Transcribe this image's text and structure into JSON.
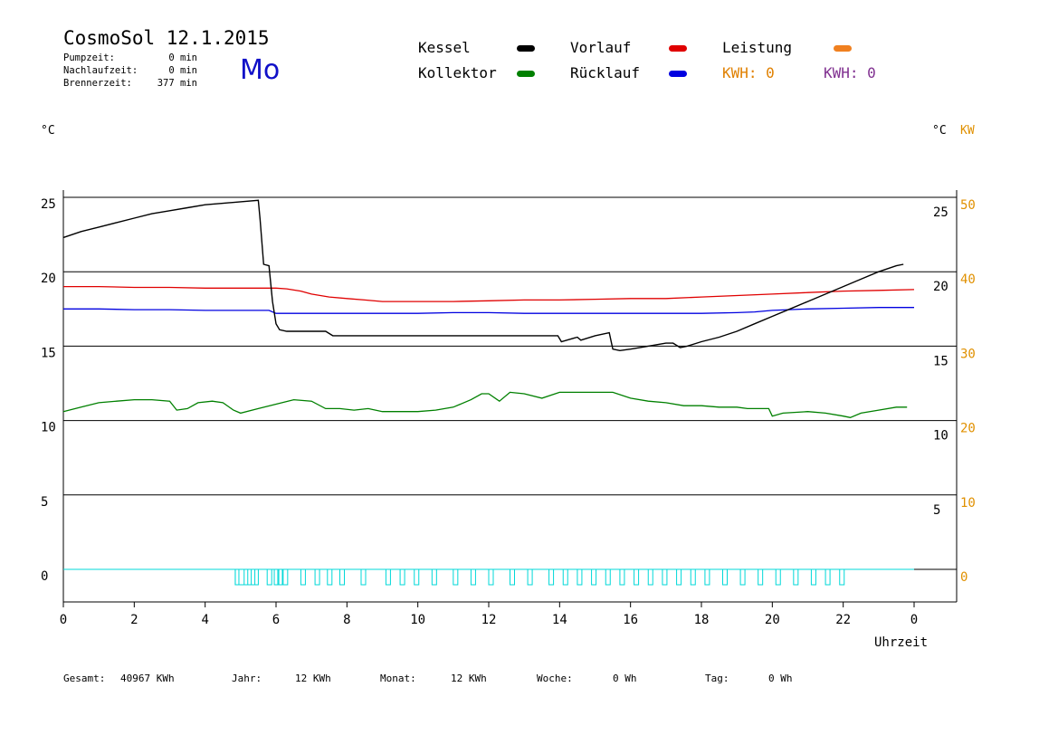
{
  "header": {
    "title": "CosmoSol 12.1.2015",
    "weekday": "Mo",
    "stats": [
      {
        "label": "Pumpzeit:",
        "value": "0 min"
      },
      {
        "label": "Nachlaufzeit:",
        "value": "0 min"
      },
      {
        "label": "Brennerzeit:",
        "value": "377 min"
      }
    ]
  },
  "legend": {
    "kessel": {
      "label": "Kessel",
      "color": "#000000"
    },
    "vorlauf": {
      "label": "Vorlauf",
      "color": "#e00000"
    },
    "leistung": {
      "label": "Leistung",
      "color": "#f08020"
    },
    "kollektor": {
      "label": "Kollektor",
      "color": "#008000"
    },
    "ruecklauf": {
      "label": "Rücklauf",
      "color": "#0000e0"
    },
    "kwh_orange": {
      "label": "KWH: 0",
      "color": "#e08000"
    },
    "kwh_purple": {
      "label": "KWH: 0",
      "color": "#803090"
    }
  },
  "axes": {
    "left_unit": "°C",
    "right_unit": "°C",
    "right_unit2": "KW",
    "x_label": "Uhrzeit"
  },
  "footer": {
    "gesamt_label": "Gesamt:",
    "gesamt_value": "40967 KWh",
    "jahr_label": "Jahr:",
    "jahr_value": "12 KWh",
    "monat_label": "Monat:",
    "monat_value": "12 KWh",
    "woche_label": "Woche:",
    "woche_value": "0 Wh",
    "tag_label": "Tag:",
    "tag_value": "0 Wh"
  },
  "chart_data": {
    "type": "line",
    "xlim": [
      0,
      24
    ],
    "ylim": [
      -2,
      26
    ],
    "y2lim": [
      -4,
      52
    ],
    "x_ticks": [
      "0",
      "2",
      "4",
      "6",
      "8",
      "10",
      "12",
      "14",
      "16",
      "18",
      "20",
      "22",
      "0"
    ],
    "y_ticks_left": [
      0,
      5,
      10,
      15,
      20,
      25
    ],
    "y_ticks_right": [
      5,
      10,
      15,
      20,
      25
    ],
    "y2_ticks": [
      0,
      10,
      20,
      30,
      40,
      50
    ],
    "grid": true,
    "series": [
      {
        "name": "Kessel",
        "color": "#000000",
        "x": [
          0,
          0.5,
          1,
          1.5,
          2,
          2.5,
          3,
          3.5,
          4,
          4.5,
          5,
          5.5,
          5.55,
          5.65,
          5.8,
          5.9,
          6.0,
          6.1,
          6.3,
          7.4,
          7.6,
          9,
          10,
          11,
          12,
          13,
          13.95,
          14.05,
          14.5,
          14.6,
          15.0,
          15.4,
          15.5,
          15.7,
          16.0,
          16.5,
          17.0,
          17.2,
          17.4,
          17.6,
          18.0,
          18.5,
          19.0,
          19.5,
          20.0,
          20.5,
          21.0,
          21.5,
          22.0,
          22.5,
          23.0,
          23.5,
          23.7
        ],
        "values": [
          22.3,
          22.7,
          23.0,
          23.3,
          23.6,
          23.9,
          24.1,
          24.3,
          24.5,
          24.6,
          24.7,
          24.8,
          23.5,
          20.5,
          20.4,
          18.0,
          16.5,
          16.1,
          16.0,
          16.0,
          15.7,
          15.7,
          15.7,
          15.7,
          15.7,
          15.7,
          15.7,
          15.3,
          15.6,
          15.4,
          15.7,
          15.9,
          14.8,
          14.7,
          14.8,
          15.0,
          15.2,
          15.2,
          14.9,
          15.0,
          15.3,
          15.6,
          16.0,
          16.5,
          17.0,
          17.5,
          18.0,
          18.5,
          19.0,
          19.5,
          20.0,
          20.4,
          20.5
        ]
      },
      {
        "name": "Vorlauf",
        "color": "#e00000",
        "x": [
          0,
          1,
          2,
          3,
          4,
          5,
          6,
          6.3,
          6.7,
          7.0,
          7.5,
          8.0,
          8.5,
          9,
          10,
          11,
          12,
          13,
          14,
          15,
          16,
          17,
          18,
          19,
          20,
          21,
          22,
          23,
          24
        ],
        "values": [
          19.0,
          19.0,
          18.95,
          18.95,
          18.9,
          18.9,
          18.9,
          18.85,
          18.7,
          18.5,
          18.3,
          18.2,
          18.1,
          18.0,
          18.0,
          18.0,
          18.05,
          18.1,
          18.1,
          18.15,
          18.2,
          18.2,
          18.3,
          18.4,
          18.5,
          18.6,
          18.7,
          18.75,
          18.8
        ]
      },
      {
        "name": "Rücklauf",
        "color": "#0000e0",
        "x": [
          0,
          1,
          2,
          3,
          4,
          5,
          5.8,
          6.0,
          7,
          8,
          9,
          10,
          11,
          12,
          13,
          14,
          15,
          16,
          17,
          18,
          19,
          19.5,
          20,
          21,
          22,
          23,
          24
        ],
        "values": [
          17.5,
          17.5,
          17.45,
          17.45,
          17.4,
          17.4,
          17.4,
          17.2,
          17.2,
          17.2,
          17.2,
          17.2,
          17.25,
          17.25,
          17.2,
          17.2,
          17.2,
          17.2,
          17.2,
          17.2,
          17.25,
          17.3,
          17.4,
          17.5,
          17.55,
          17.6,
          17.6
        ]
      },
      {
        "name": "Kollektor",
        "color": "#008000",
        "x": [
          0,
          0.5,
          1,
          1.5,
          2,
          2.5,
          3.0,
          3.2,
          3.5,
          3.8,
          4.2,
          4.5,
          4.8,
          5.0,
          5.5,
          6.0,
          6.5,
          7.0,
          7.4,
          7.8,
          8.2,
          8.6,
          9.0,
          9.5,
          10,
          10.5,
          11.0,
          11.5,
          11.8,
          12.0,
          12.3,
          12.6,
          13.0,
          13.5,
          14,
          15,
          15.5,
          16,
          16.5,
          17,
          17.5,
          18,
          18.5,
          19,
          19.3,
          19.6,
          19.9,
          20.0,
          20.3,
          21.0,
          21.5,
          22.0,
          22.2,
          22.5,
          23.0,
          23.5,
          23.8
        ],
        "values": [
          10.6,
          10.9,
          11.2,
          11.3,
          11.4,
          11.4,
          11.3,
          10.7,
          10.8,
          11.2,
          11.3,
          11.2,
          10.7,
          10.5,
          10.8,
          11.1,
          11.4,
          11.3,
          10.8,
          10.8,
          10.7,
          10.8,
          10.6,
          10.6,
          10.6,
          10.7,
          10.9,
          11.4,
          11.8,
          11.8,
          11.3,
          11.9,
          11.8,
          11.5,
          11.9,
          11.9,
          11.9,
          11.5,
          11.3,
          11.2,
          11.0,
          11.0,
          10.9,
          10.9,
          10.8,
          10.8,
          10.8,
          10.3,
          10.5,
          10.6,
          10.5,
          10.3,
          10.2,
          10.5,
          10.7,
          10.9,
          10.9
        ]
      },
      {
        "name": "Leistung",
        "color": "#f08020",
        "x": [
          0,
          24
        ],
        "values": [
          0,
          0
        ]
      }
    ],
    "pump_pulses_x": [
      4.85,
      5.1,
      5.3,
      5.75,
      5.95,
      6.05,
      6.2,
      6.7,
      7.1,
      7.45,
      7.8,
      8.4,
      9.1,
      9.5,
      9.9,
      10.4,
      11.0,
      11.5,
      12.0,
      12.6,
      13.1,
      13.7,
      14.1,
      14.5,
      14.9,
      15.3,
      15.7,
      16.1,
      16.5,
      16.9,
      17.3,
      17.7,
      18.1,
      18.6,
      19.1,
      19.6,
      20.1,
      20.6,
      21.1,
      21.5,
      21.9
    ]
  }
}
